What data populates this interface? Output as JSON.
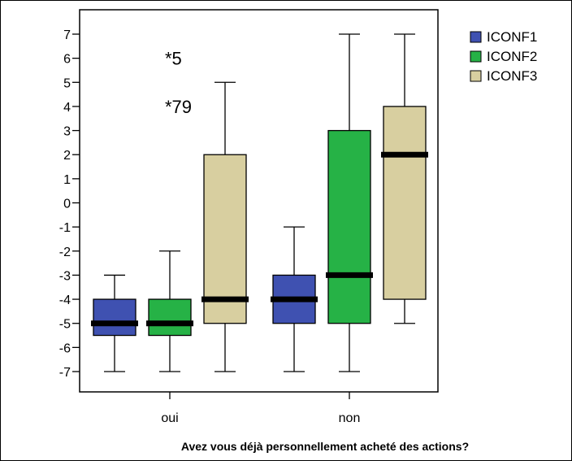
{
  "chart_data": {
    "type": "boxplot",
    "title": "",
    "xlabel": "Avez vous déjà personnellement acheté des actions?",
    "ylabel": "",
    "ylim": [
      -7.5,
      7.5
    ],
    "yticks": [
      7,
      6,
      5,
      4,
      3,
      2,
      1,
      0,
      -1,
      -2,
      -3,
      -4,
      -5,
      -6,
      -7
    ],
    "categories": [
      "oui",
      "non"
    ],
    "legend_position": "top-right",
    "series": [
      {
        "name": "ICONF1",
        "color": "#3f51b1",
        "boxes": [
          {
            "whisker_low": -7,
            "q1": -5.5,
            "median": -5,
            "q3": -4,
            "whisker_high": -3
          },
          {
            "whisker_low": -7,
            "q1": -5,
            "median": -4,
            "q3": -3,
            "whisker_high": -1
          }
        ]
      },
      {
        "name": "ICONF2",
        "color": "#26b246",
        "boxes": [
          {
            "whisker_low": -7,
            "q1": -5.5,
            "median": -5,
            "q3": -4,
            "whisker_high": -2
          },
          {
            "whisker_low": -7,
            "q1": -5,
            "median": -3,
            "q3": 3,
            "whisker_high": 7
          }
        ]
      },
      {
        "name": "ICONF3",
        "color": "#d8cfa0",
        "boxes": [
          {
            "whisker_low": -7,
            "q1": -5,
            "median": -4,
            "q3": 2,
            "whisker_high": 5
          },
          {
            "whisker_low": -5,
            "q1": -4,
            "median": 2,
            "q3": 4,
            "whisker_high": 7
          }
        ]
      }
    ],
    "outliers": [
      {
        "series": "ICONF1",
        "category": "oui",
        "marker": "*",
        "label": "5",
        "y": 6
      },
      {
        "series": "ICONF1",
        "category": "oui",
        "marker": "*",
        "label": "79",
        "y": 4
      }
    ]
  }
}
